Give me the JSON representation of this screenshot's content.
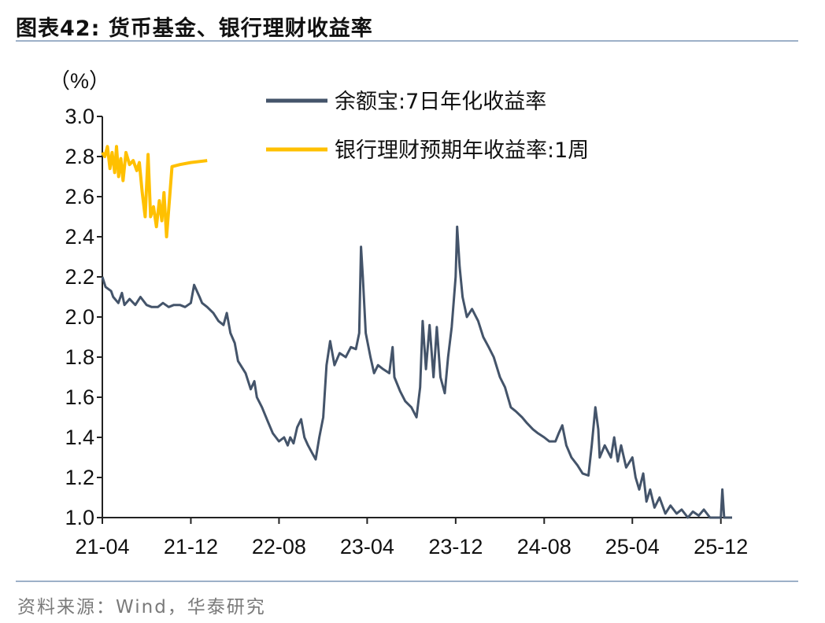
{
  "header": {
    "title": "图表42:  货币基金、银行理财收益率"
  },
  "footer": {
    "source": "资料来源：Wind，华泰研究"
  },
  "colors": {
    "series1": "#44546a",
    "series2": "#ffc000",
    "rule": "#9db0c8"
  },
  "chart_data": {
    "type": "line",
    "title": "货币基金、银行理财收益率",
    "ylabel": "（%）",
    "xlabel": "",
    "ylim": [
      1.0,
      3.0
    ],
    "yticks": [
      "1.0",
      "1.2",
      "1.4",
      "1.6",
      "1.8",
      "2.0",
      "2.2",
      "2.4",
      "2.6",
      "2.8",
      "3.0"
    ],
    "xticks": [
      "21-04",
      "21-12",
      "22-08",
      "23-04",
      "23-12",
      "24-08",
      "25-04",
      "25-12"
    ],
    "xrange": [
      "2021-04",
      "2026-01"
    ],
    "legend_position": "top-right",
    "grid": false,
    "series": [
      {
        "name": "余额宝:7日年化收益率",
        "color": "#44546a",
        "points": [
          [
            "2021-04",
            2.2
          ],
          [
            "2021-04-10",
            2.15
          ],
          [
            "2021-04-25",
            2.13
          ],
          [
            "2021-05",
            2.1
          ],
          [
            "2021-05-15",
            2.07
          ],
          [
            "2021-05-25",
            2.12
          ],
          [
            "2021-06",
            2.06
          ],
          [
            "2021-06-15",
            2.09
          ],
          [
            "2021-07",
            2.06
          ],
          [
            "2021-07-15",
            2.1
          ],
          [
            "2021-08",
            2.06
          ],
          [
            "2021-08-15",
            2.05
          ],
          [
            "2021-09",
            2.05
          ],
          [
            "2021-09-15",
            2.07
          ],
          [
            "2021-10",
            2.05
          ],
          [
            "2021-10-15",
            2.06
          ],
          [
            "2021-11",
            2.06
          ],
          [
            "2021-11-15",
            2.05
          ],
          [
            "2021-12",
            2.07
          ],
          [
            "2021-12-10",
            2.16
          ],
          [
            "2021-12-25",
            2.1
          ],
          [
            "2022-01",
            2.07
          ],
          [
            "2022-01-15",
            2.05
          ],
          [
            "2022-02",
            2.02
          ],
          [
            "2022-02-15",
            1.98
          ],
          [
            "2022-03",
            1.96
          ],
          [
            "2022-03-10",
            2.02
          ],
          [
            "2022-03-20",
            1.92
          ],
          [
            "2022-04",
            1.87
          ],
          [
            "2022-04-10",
            1.78
          ],
          [
            "2022-05",
            1.72
          ],
          [
            "2022-05-15",
            1.64
          ],
          [
            "2022-05-25",
            1.68
          ],
          [
            "2022-06",
            1.6
          ],
          [
            "2022-06-15",
            1.55
          ],
          [
            "2022-07",
            1.48
          ],
          [
            "2022-07-15",
            1.42
          ],
          [
            "2022-08",
            1.38
          ],
          [
            "2022-08-15",
            1.4
          ],
          [
            "2022-08-25",
            1.36
          ],
          [
            "2022-09",
            1.4
          ],
          [
            "2022-09-10",
            1.37
          ],
          [
            "2022-09-20",
            1.45
          ],
          [
            "2022-10",
            1.49
          ],
          [
            "2022-10-10",
            1.4
          ],
          [
            "2022-10-20",
            1.36
          ],
          [
            "2022-11",
            1.32
          ],
          [
            "2022-11-10",
            1.29
          ],
          [
            "2022-11-20",
            1.4
          ],
          [
            "2022-12",
            1.5
          ],
          [
            "2022-12-10",
            1.76
          ],
          [
            "2022-12-20",
            1.88
          ],
          [
            "2023-01",
            1.76
          ],
          [
            "2023-01-15",
            1.82
          ],
          [
            "2023-02",
            1.8
          ],
          [
            "2023-02-15",
            1.85
          ],
          [
            "2023-03",
            1.84
          ],
          [
            "2023-03-10",
            1.92
          ],
          [
            "2023-03-15",
            2.35
          ],
          [
            "2023-03-20",
            2.2
          ],
          [
            "2023-03-28",
            1.92
          ],
          [
            "2023-04-10",
            1.8
          ],
          [
            "2023-04-20",
            1.72
          ],
          [
            "2023-05",
            1.76
          ],
          [
            "2023-05-15",
            1.74
          ],
          [
            "2023-06",
            1.72
          ],
          [
            "2023-06-10",
            1.85
          ],
          [
            "2023-06-15",
            1.7
          ],
          [
            "2023-07",
            1.63
          ],
          [
            "2023-07-15",
            1.58
          ],
          [
            "2023-08",
            1.55
          ],
          [
            "2023-08-15",
            1.5
          ],
          [
            "2023-08-25",
            1.65
          ],
          [
            "2023-09",
            1.98
          ],
          [
            "2023-09-10",
            1.74
          ],
          [
            "2023-09-20",
            1.96
          ],
          [
            "2023-10",
            1.7
          ],
          [
            "2023-10-10",
            1.95
          ],
          [
            "2023-10-20",
            1.7
          ],
          [
            "2023-11",
            1.62
          ],
          [
            "2023-11-10",
            1.8
          ],
          [
            "2023-11-20",
            1.95
          ],
          [
            "2023-12",
            2.2
          ],
          [
            "2023-12-05",
            2.45
          ],
          [
            "2023-12-12",
            2.25
          ],
          [
            "2023-12-20",
            2.1
          ],
          [
            "2024-01",
            2.0
          ],
          [
            "2024-01-15",
            2.04
          ],
          [
            "2024-02",
            1.98
          ],
          [
            "2024-02-15",
            1.9
          ],
          [
            "2024-03",
            1.85
          ],
          [
            "2024-03-15",
            1.8
          ],
          [
            "2024-04",
            1.7
          ],
          [
            "2024-04-15",
            1.65
          ],
          [
            "2024-05",
            1.55
          ],
          [
            "2024-05-15",
            1.53
          ],
          [
            "2024-06",
            1.5
          ],
          [
            "2024-06-15",
            1.47
          ],
          [
            "2024-07",
            1.44
          ],
          [
            "2024-07-15",
            1.42
          ],
          [
            "2024-08",
            1.4
          ],
          [
            "2024-08-15",
            1.38
          ],
          [
            "2024-09",
            1.38
          ],
          [
            "2024-09-10",
            1.42
          ],
          [
            "2024-09-20",
            1.46
          ],
          [
            "2024-10",
            1.36
          ],
          [
            "2024-10-15",
            1.3
          ],
          [
            "2024-11",
            1.26
          ],
          [
            "2024-11-15",
            1.22
          ],
          [
            "2024-12",
            1.21
          ],
          [
            "2024-12-10",
            1.36
          ],
          [
            "2024-12-20",
            1.55
          ],
          [
            "2024-12-28",
            1.44
          ],
          [
            "2025-01",
            1.3
          ],
          [
            "2025-01-15",
            1.36
          ],
          [
            "2025-02",
            1.3
          ],
          [
            "2025-02-10",
            1.4
          ],
          [
            "2025-02-20",
            1.28
          ],
          [
            "2025-03",
            1.36
          ],
          [
            "2025-03-15",
            1.25
          ],
          [
            "2025-04",
            1.3
          ],
          [
            "2025-04-10",
            1.2
          ],
          [
            "2025-04-20",
            1.14
          ],
          [
            "2025-05",
            1.22
          ],
          [
            "2025-05-10",
            1.08
          ],
          [
            "2025-05-20",
            1.14
          ],
          [
            "2025-06",
            1.05
          ],
          [
            "2025-06-15",
            1.1
          ],
          [
            "2025-07",
            1.02
          ],
          [
            "2025-07-15",
            1.06
          ],
          [
            "2025-08",
            1.02
          ],
          [
            "2025-08-15",
            1.04
          ],
          [
            "2025-09",
            1.0
          ],
          [
            "2025-09-15",
            1.03
          ],
          [
            "2025-10",
            1.01
          ],
          [
            "2025-10-15",
            1.04
          ],
          [
            "2025-11",
            1.0
          ],
          [
            "2025-11-15",
            1.0
          ],
          [
            "2025-12",
            1.0
          ],
          [
            "2025-12-05",
            1.14
          ],
          [
            "2025-12-10",
            1.0
          ],
          [
            "2025-12-20",
            1.0
          ],
          [
            "2026-01",
            1.0
          ]
        ]
      },
      {
        "name": "银行理财预期年收益率:1周",
        "color": "#ffc000",
        "points": [
          [
            "2021-04",
            2.82
          ],
          [
            "2021-04-08",
            2.8
          ],
          [
            "2021-04-15",
            2.85
          ],
          [
            "2021-04-22",
            2.74
          ],
          [
            "2021-04-28",
            2.82
          ],
          [
            "2021-05-05",
            2.72
          ],
          [
            "2021-05-10",
            2.85
          ],
          [
            "2021-05-16",
            2.7
          ],
          [
            "2021-05-22",
            2.79
          ],
          [
            "2021-05-28",
            2.68
          ],
          [
            "2021-06-05",
            2.82
          ],
          [
            "2021-06-15",
            2.76
          ],
          [
            "2021-06-25",
            2.78
          ],
          [
            "2021-07-05",
            2.73
          ],
          [
            "2021-07-12",
            2.77
          ],
          [
            "2021-07-20",
            2.62
          ],
          [
            "2021-07-28",
            2.5
          ],
          [
            "2021-08-05",
            2.81
          ],
          [
            "2021-08-12",
            2.5
          ],
          [
            "2021-08-20",
            2.55
          ],
          [
            "2021-08-28",
            2.45
          ],
          [
            "2021-09-05",
            2.58
          ],
          [
            "2021-09-12",
            2.48
          ],
          [
            "2021-09-18",
            2.62
          ],
          [
            "2021-09-25",
            2.4
          ],
          [
            "2021-10-10",
            2.75
          ],
          [
            "2021-11-01",
            2.76
          ],
          [
            "2021-12-01",
            2.77
          ],
          [
            "2022-01-15",
            2.78
          ]
        ]
      }
    ]
  }
}
